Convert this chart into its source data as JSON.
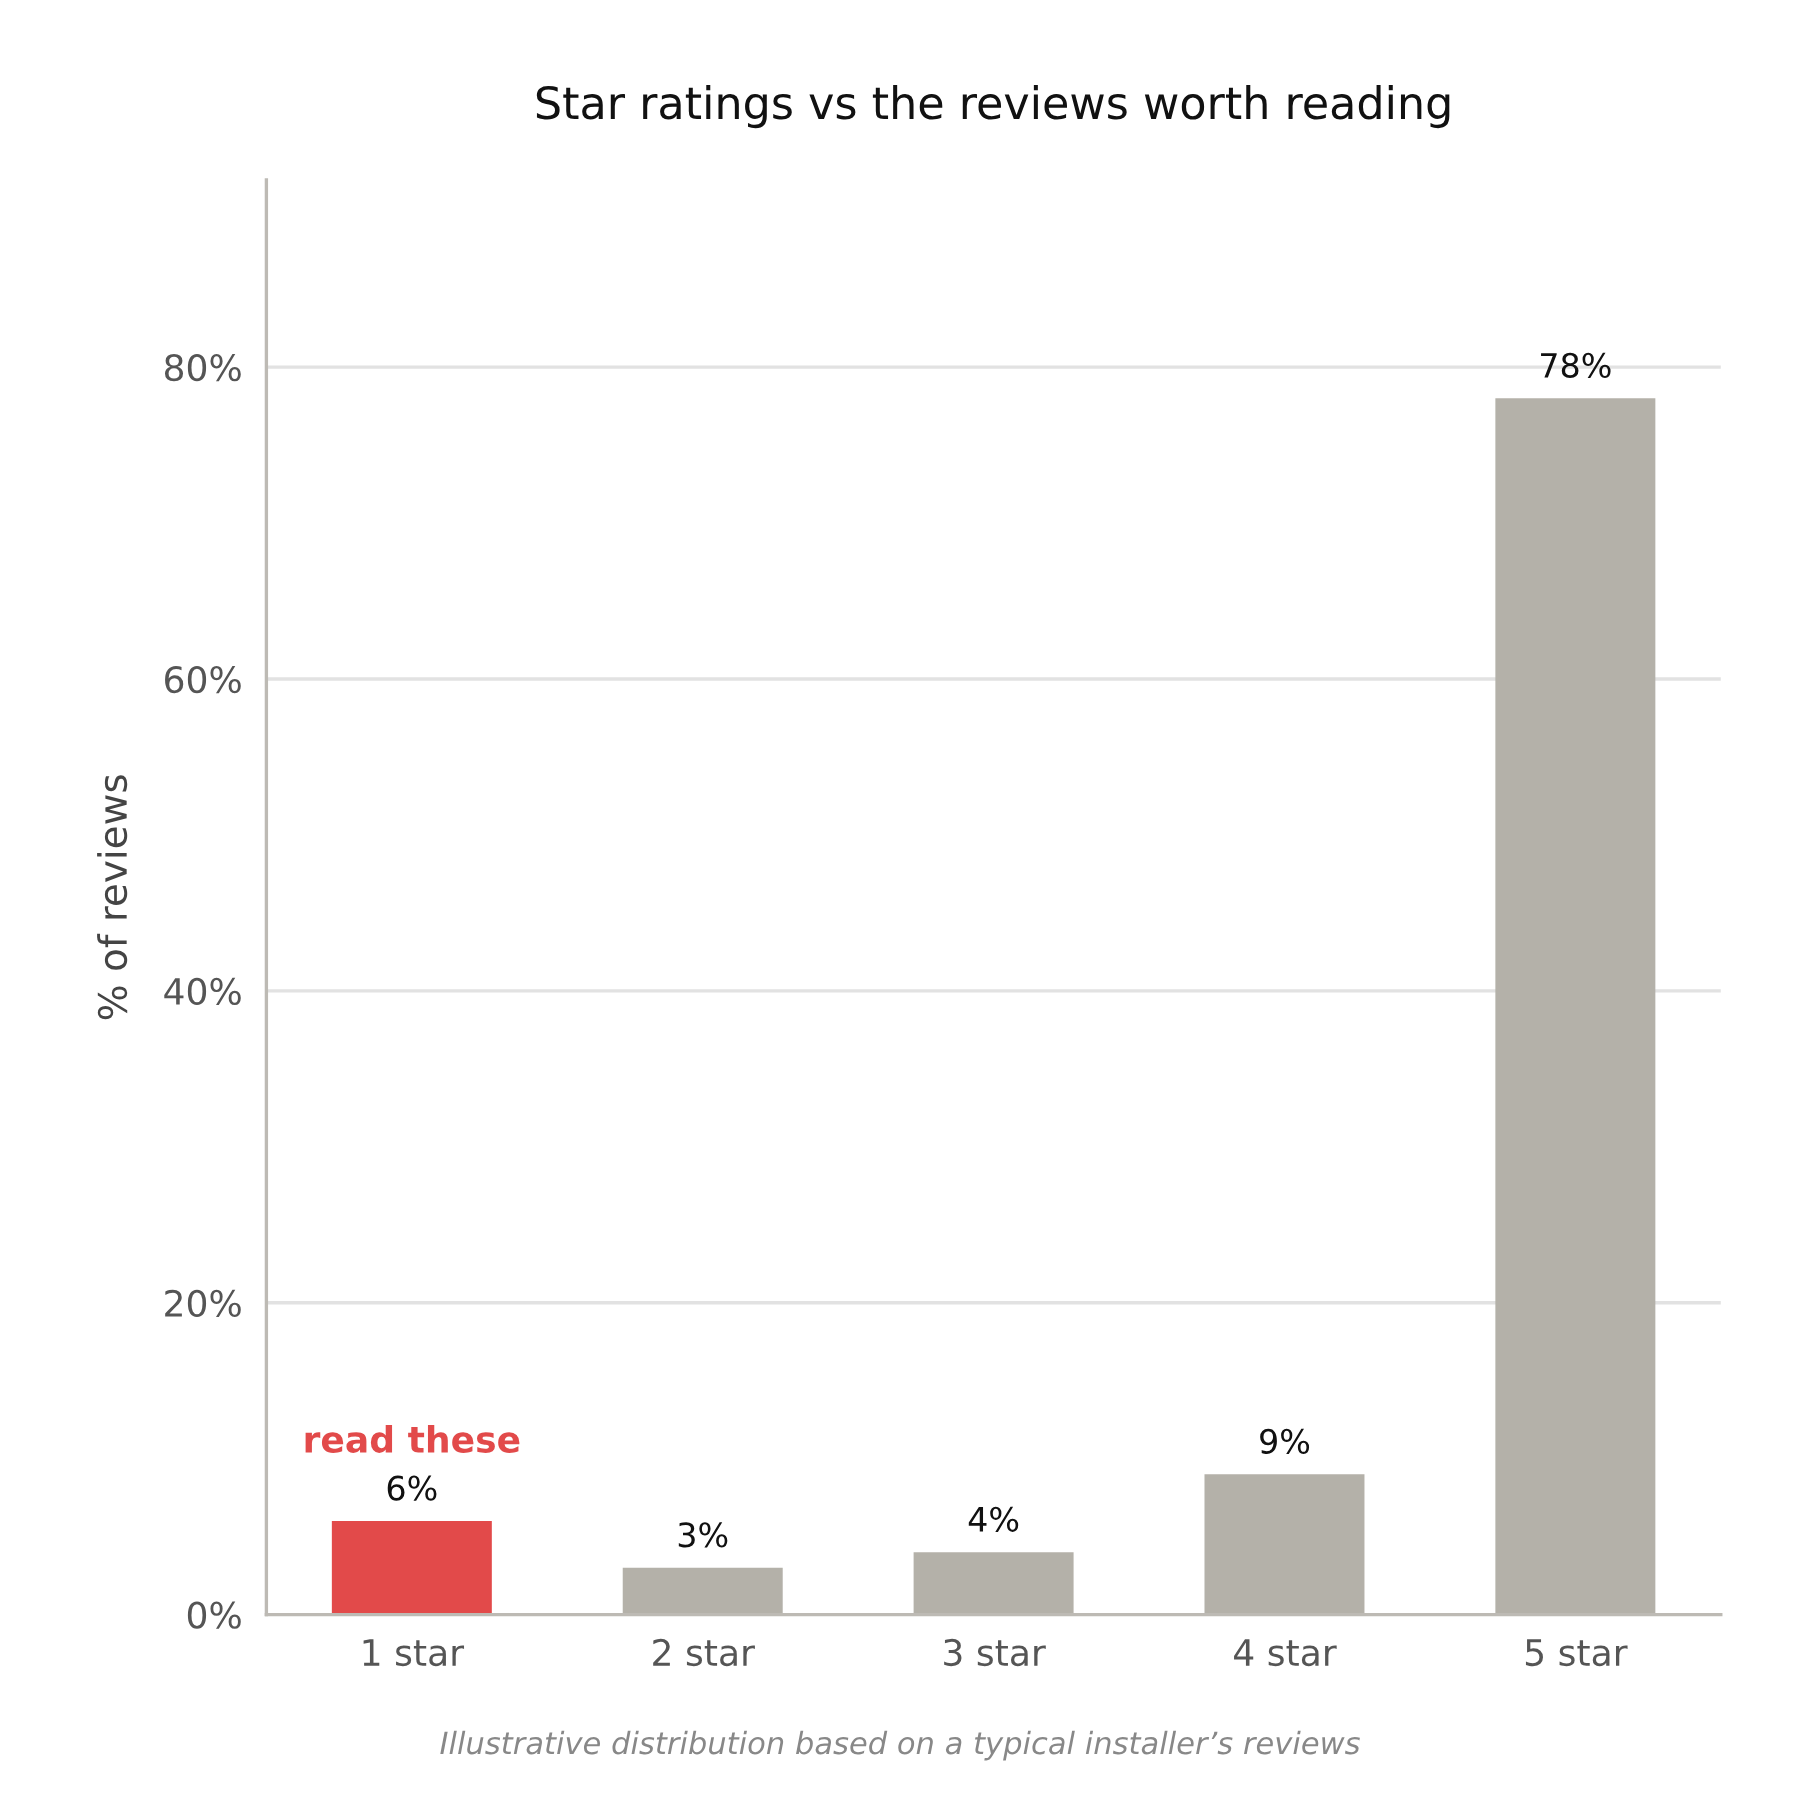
{
  "chart_data": {
    "type": "bar",
    "title": "Star ratings vs the reviews worth reading",
    "ylabel": "% of reviews",
    "categories": [
      "1 star",
      "2 star",
      "3 star",
      "4 star",
      "5 star"
    ],
    "values": [
      6,
      3,
      4,
      9,
      78
    ],
    "colors": [
      "#e24a4a",
      "#b4b1a9",
      "#b4b1a9",
      "#b4b1a9",
      "#b4b1a9"
    ],
    "value_labels": [
      "6%",
      "3%",
      "4%",
      "9%",
      "78%"
    ],
    "ylim": [
      0,
      92
    ],
    "yticks": [
      {
        "value": 0,
        "label": "0%"
      },
      {
        "value": 20,
        "label": "20%"
      },
      {
        "value": 40,
        "label": "40%"
      },
      {
        "value": 60,
        "label": "60%"
      },
      {
        "value": 80,
        "label": "80%"
      }
    ],
    "grid": "y",
    "legend": false,
    "annotations": [
      {
        "text": "read these",
        "x": "1 star",
        "y": 6
      },
      "Illustrative distribution based on a typical installer’s reviews"
    ]
  }
}
